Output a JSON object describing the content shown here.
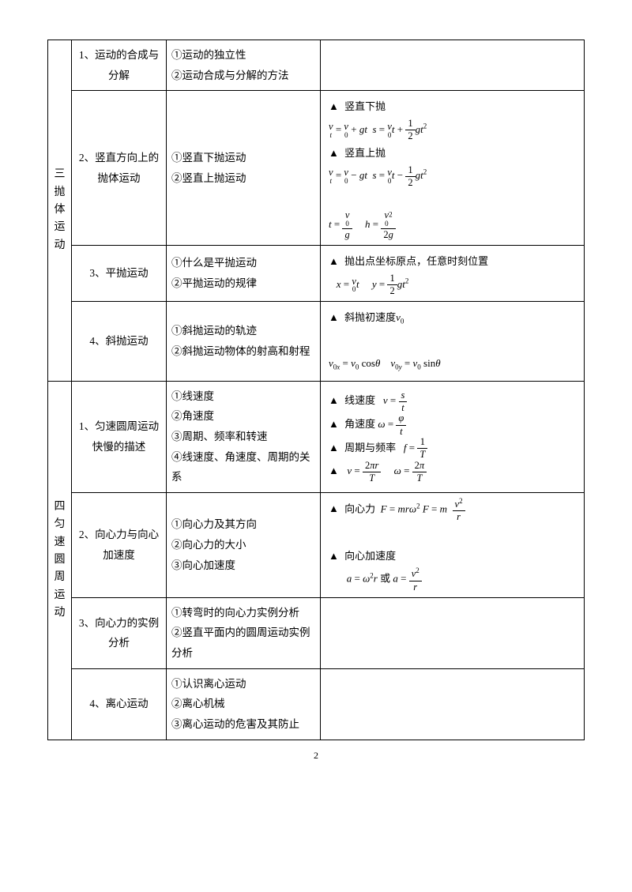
{
  "sections": [
    {
      "label": "三抛体运动",
      "rows": [
        {
          "topic": "1、运动的合成与分解",
          "points": "①运动的独立性\n②运动合成与分解的方法",
          "formula": ""
        },
        {
          "topic": "2、竖直方向上的抛体运动",
          "points": "①竖直下抛运动\n②竖直上抛运动",
          "formula": "vdown"
        },
        {
          "topic": "3、平抛运动",
          "points": "①什么是平抛运动\n②平抛运动的规律",
          "formula": "flat"
        },
        {
          "topic": "4、斜抛运动",
          "points": "①斜抛运动的轨迹\n②斜抛运动物体的射高和射程",
          "formula": "oblique"
        }
      ]
    },
    {
      "label": "四匀速圆周运动",
      "rows": [
        {
          "topic": "1、匀速圆周运动快慢的描述",
          "points": "①线速度\n②角速度\n③周期、频率和转速\n④线速度、角速度、周期的关系",
          "formula": "circ_desc"
        },
        {
          "topic": "2、向心力与向心加速度",
          "points": "①向心力及其方向\n②向心力的大小\n③向心加速度",
          "formula": "centripetal"
        },
        {
          "topic": "3、向心力的实例分析",
          "points": "①转弯时的向心力实例分析\n②竖直平面内的圆周运动实例分析",
          "formula": ""
        },
        {
          "topic": "4、离心运动",
          "points": "①认识离心运动\n②离心机械\n③离心运动的危害及其防止",
          "formula": ""
        }
      ]
    }
  ],
  "formulas": {
    "vdown": {
      "h1": "竖直下抛",
      "h2": "竖直上抛"
    },
    "flat": {
      "h": "抛出点坐标原点，任意时刻位置"
    },
    "oblique": {
      "h": "斜抛初速度"
    },
    "circ_desc": {
      "a": "线速度",
      "b": "角速度",
      "c": "周期与频率"
    },
    "centripetal": {
      "a": "向心力",
      "b": "向心加速度"
    }
  },
  "page": "2"
}
